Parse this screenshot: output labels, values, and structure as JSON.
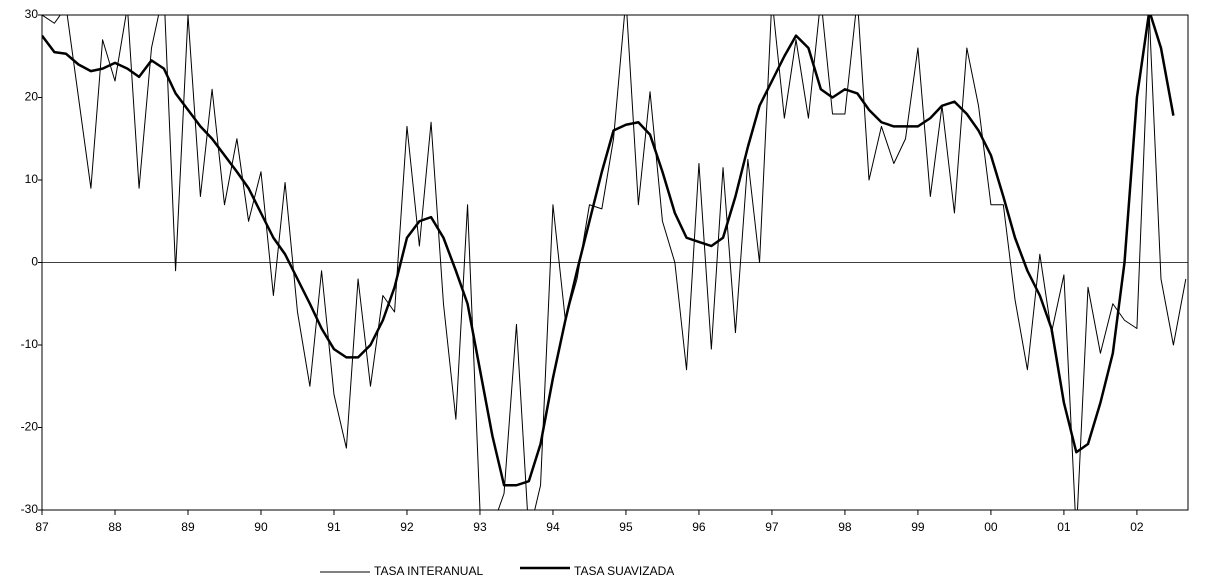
{
  "chart_data": {
    "type": "line",
    "x": [
      1987,
      1987.17,
      1987.33,
      1987.5,
      1987.67,
      1987.83,
      1988,
      1988.17,
      1988.33,
      1988.5,
      1988.67,
      1988.83,
      1989,
      1989.17,
      1989.33,
      1989.5,
      1989.67,
      1989.83,
      1990,
      1990.17,
      1990.33,
      1990.5,
      1990.67,
      1990.83,
      1991,
      1991.17,
      1991.33,
      1991.5,
      1991.67,
      1991.83,
      1992,
      1992.17,
      1992.33,
      1992.5,
      1992.67,
      1992.83,
      1993,
      1993.17,
      1993.33,
      1993.5,
      1993.67,
      1993.83,
      1994,
      1994.17,
      1994.33,
      1994.5,
      1994.67,
      1994.83,
      1995,
      1995.17,
      1995.33,
      1995.5,
      1995.67,
      1995.83,
      1996,
      1996.17,
      1996.33,
      1996.5,
      1996.67,
      1996.83,
      1997,
      1997.17,
      1997.33,
      1997.5,
      1997.67,
      1997.83,
      1998,
      1998.17,
      1998.33,
      1998.5,
      1998.67,
      1998.83,
      1999,
      1999.17,
      1999.33,
      1999.5,
      1999.67,
      1999.83,
      2000,
      2000.17,
      2000.33,
      2000.5,
      2000.67,
      2000.83,
      2001,
      2001.17,
      2001.33,
      2001.5,
      2001.67,
      2001.83,
      2002,
      2002.17,
      2002.33,
      2002.5,
      2002.67
    ],
    "series": [
      {
        "name": "TASA INTERANUAL",
        "color": "#000000",
        "width": 1,
        "values": [
          30,
          29,
          31,
          20,
          9,
          27,
          22,
          31,
          9,
          26,
          33,
          -1,
          30,
          8,
          21,
          7,
          15,
          5,
          11,
          -4,
          9.7,
          -6,
          -15,
          -1,
          -16,
          -22.5,
          -2,
          -15,
          -4,
          -6,
          16.5,
          2,
          17,
          -5,
          -19,
          7,
          -30,
          -32,
          -28,
          -7.5,
          -33,
          -27,
          7,
          -7,
          -2,
          7,
          6.5,
          15,
          32,
          7,
          20.7,
          5,
          0,
          -13,
          12,
          -10.5,
          11.5,
          -8.5,
          12.5,
          0,
          32,
          17.5,
          27,
          17.5,
          32,
          18,
          18,
          32,
          10,
          16.5,
          12,
          15,
          26,
          8,
          19,
          6,
          26,
          19,
          7,
          7,
          -4.5,
          -13,
          1,
          -8.5,
          -1.5,
          -33,
          -3,
          -11,
          -5,
          -7,
          -8,
          30,
          -2,
          -10,
          -2
        ]
      },
      {
        "name": "TASA SUAVIZADA",
        "color": "#000000",
        "width": 2.5,
        "values": [
          27.5,
          25.5,
          25.3,
          24,
          23.2,
          23.5,
          24.2,
          23.5,
          22.5,
          24.5,
          23.5,
          20.5,
          18.5,
          16.5,
          15,
          13,
          11,
          9,
          6,
          3,
          1,
          -2,
          -5,
          -8,
          -10.5,
          -11.5,
          -11.5,
          -10,
          -7,
          -3,
          3,
          5,
          5.5,
          3,
          -1,
          -5,
          -13,
          -21,
          -27,
          -27,
          -26.5,
          -22,
          -14,
          -7,
          -1,
          5,
          11,
          16,
          16.7,
          17,
          15.5,
          11,
          6,
          3,
          2.5,
          2,
          3,
          8,
          14,
          19,
          22,
          25,
          27.5,
          26,
          21,
          20,
          21,
          20.5,
          18.5,
          17,
          16.5,
          16.5,
          16.5,
          17.5,
          19,
          19.5,
          18,
          16,
          13,
          8,
          3,
          -1,
          -4,
          -8,
          -17,
          -23,
          -22,
          -17,
          -11,
          0,
          20,
          30.5,
          26,
          17.8,
          null
        ]
      }
    ],
    "xlim": [
      1987,
      2002.7
    ],
    "xticks": [
      {
        "value": 1987,
        "label": "87"
      },
      {
        "value": 1988,
        "label": "88"
      },
      {
        "value": 1989,
        "label": "89"
      },
      {
        "value": 1990,
        "label": "90"
      },
      {
        "value": 1991,
        "label": "91"
      },
      {
        "value": 1992,
        "label": "92"
      },
      {
        "value": 1993,
        "label": "93"
      },
      {
        "value": 1994,
        "label": "94"
      },
      {
        "value": 1995,
        "label": "95"
      },
      {
        "value": 1996,
        "label": "96"
      },
      {
        "value": 1997,
        "label": "97"
      },
      {
        "value": 1998,
        "label": "98"
      },
      {
        "value": 1999,
        "label": "99"
      },
      {
        "value": 2000,
        "label": "00"
      },
      {
        "value": 2001,
        "label": "01"
      },
      {
        "value": 2002,
        "label": "02"
      }
    ],
    "ylim": [
      -30,
      30
    ],
    "yticks": [
      -30,
      -20,
      -10,
      0,
      10,
      20,
      30
    ],
    "zero_line": true,
    "legend": "bottom"
  }
}
